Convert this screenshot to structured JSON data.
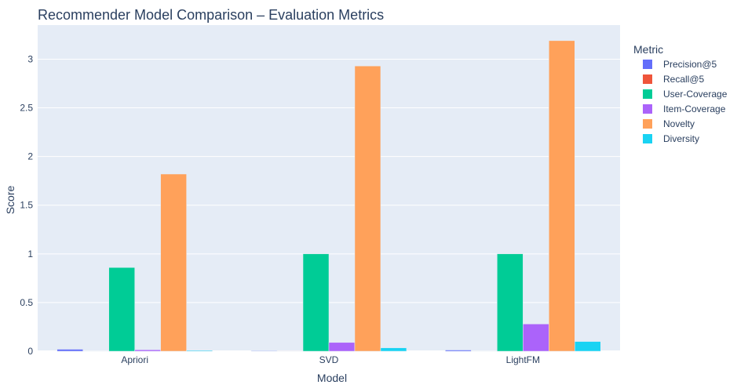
{
  "chart_data": {
    "type": "bar",
    "title": "Recommender Model Comparison – Evaluation Metrics",
    "xlabel": "Model",
    "ylabel": "Score",
    "categories": [
      "Apriori",
      "SVD",
      "LightFM"
    ],
    "ylim": [
      0,
      3.35
    ],
    "yticks": [
      0,
      0.5,
      1,
      1.5,
      2,
      2.5,
      3
    ],
    "ytick_labels": [
      "0",
      "0.5",
      "1",
      "1.5",
      "2",
      "2.5",
      "3"
    ],
    "grid": true,
    "legend_title": "Metric",
    "legend_position": "right",
    "series": [
      {
        "name": "Precision@5",
        "color": "#636efa",
        "values": [
          0.02,
          0.005,
          0.012
        ]
      },
      {
        "name": "Recall@5",
        "color": "#ef553b",
        "values": [
          0.002,
          0.001,
          0.002
        ]
      },
      {
        "name": "User-Coverage",
        "color": "#00cc96",
        "values": [
          0.86,
          1.0,
          1.0
        ]
      },
      {
        "name": "Item-Coverage",
        "color": "#ab63fa",
        "values": [
          0.015,
          0.09,
          0.28
        ]
      },
      {
        "name": "Novelty",
        "color": "#ffa15a",
        "values": [
          1.82,
          2.93,
          3.19
        ]
      },
      {
        "name": "Diversity",
        "color": "#19d3f3",
        "values": [
          0.008,
          0.035,
          0.1
        ]
      }
    ]
  }
}
